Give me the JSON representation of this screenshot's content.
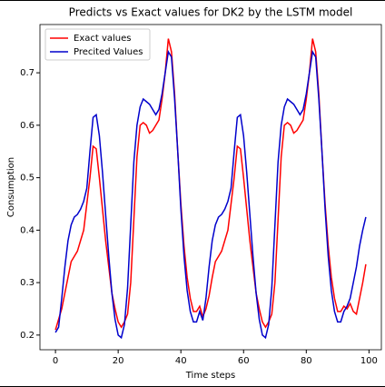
{
  "chart_data": {
    "type": "line",
    "title": "Predicts vs Exact values for DK2 by the LSTM model",
    "x_label": "Time steps",
    "y_label": "Consumption",
    "x": [
      0,
      1,
      2,
      3,
      4,
      5,
      6,
      7,
      8,
      9,
      10,
      11,
      12,
      13,
      14,
      15,
      16,
      17,
      18,
      19,
      20,
      21,
      22,
      23,
      24,
      25,
      26,
      27,
      28,
      29,
      30,
      31,
      32,
      33,
      34,
      35,
      36,
      37,
      38,
      39,
      40,
      41,
      42,
      43,
      44,
      45,
      46,
      47,
      48,
      49,
      50,
      51,
      52,
      53,
      54,
      55,
      56,
      57,
      58,
      59,
      60,
      61,
      62,
      63,
      64,
      65,
      66,
      67,
      68,
      69,
      70,
      71,
      72,
      73,
      74,
      75,
      76,
      77,
      78,
      79,
      80,
      81,
      82,
      83,
      84,
      85,
      86,
      87,
      88,
      89,
      90,
      91,
      92,
      93,
      94,
      95,
      96,
      97,
      98,
      99
    ],
    "series": [
      {
        "name": "Exact values",
        "color": "#ff0000",
        "values": [
          0.21,
          0.23,
          0.25,
          0.28,
          0.31,
          0.34,
          0.35,
          0.36,
          0.38,
          0.4,
          0.45,
          0.5,
          0.56,
          0.555,
          0.5,
          0.44,
          0.38,
          0.33,
          0.28,
          0.25,
          0.225,
          0.215,
          0.225,
          0.24,
          0.3,
          0.42,
          0.54,
          0.6,
          0.605,
          0.6,
          0.585,
          0.59,
          0.6,
          0.61,
          0.65,
          0.7,
          0.765,
          0.74,
          0.66,
          0.55,
          0.45,
          0.37,
          0.31,
          0.27,
          0.245,
          0.245,
          0.255,
          0.235,
          0.25,
          0.275,
          0.31,
          0.34,
          0.35,
          0.36,
          0.38,
          0.4,
          0.45,
          0.5,
          0.56,
          0.555,
          0.5,
          0.44,
          0.38,
          0.33,
          0.28,
          0.25,
          0.225,
          0.215,
          0.225,
          0.24,
          0.3,
          0.42,
          0.54,
          0.6,
          0.605,
          0.6,
          0.585,
          0.59,
          0.6,
          0.61,
          0.65,
          0.7,
          0.765,
          0.74,
          0.66,
          0.55,
          0.45,
          0.37,
          0.31,
          0.27,
          0.245,
          0.245,
          0.255,
          0.25,
          0.26,
          0.245,
          0.24,
          0.27,
          0.3,
          0.335
        ]
      },
      {
        "name": "Precited Values",
        "color": "#0000cc",
        "values": [
          0.205,
          0.215,
          0.27,
          0.33,
          0.38,
          0.41,
          0.425,
          0.43,
          0.44,
          0.455,
          0.48,
          0.55,
          0.615,
          0.62,
          0.58,
          0.51,
          0.43,
          0.35,
          0.28,
          0.23,
          0.2,
          0.195,
          0.22,
          0.29,
          0.41,
          0.53,
          0.6,
          0.635,
          0.65,
          0.645,
          0.64,
          0.63,
          0.62,
          0.63,
          0.66,
          0.7,
          0.74,
          0.73,
          0.65,
          0.55,
          0.44,
          0.35,
          0.285,
          0.245,
          0.225,
          0.225,
          0.245,
          0.228,
          0.27,
          0.33,
          0.38,
          0.41,
          0.425,
          0.43,
          0.44,
          0.455,
          0.48,
          0.55,
          0.615,
          0.62,
          0.58,
          0.51,
          0.43,
          0.35,
          0.28,
          0.23,
          0.2,
          0.195,
          0.22,
          0.29,
          0.41,
          0.53,
          0.6,
          0.635,
          0.65,
          0.645,
          0.64,
          0.63,
          0.62,
          0.63,
          0.66,
          0.7,
          0.74,
          0.73,
          0.65,
          0.55,
          0.44,
          0.35,
          0.285,
          0.245,
          0.225,
          0.225,
          0.245,
          0.255,
          0.27,
          0.3,
          0.33,
          0.37,
          0.4,
          0.425
        ]
      }
    ],
    "xlim": [
      -4.95,
      103.95
    ],
    "xticks": [
      0,
      20,
      40,
      60,
      80,
      100
    ],
    "ylim": [
      0.172,
      0.792
    ],
    "yticks": [
      0.2,
      0.3,
      0.4,
      0.5,
      0.6,
      0.7
    ],
    "legend": "upper left"
  }
}
